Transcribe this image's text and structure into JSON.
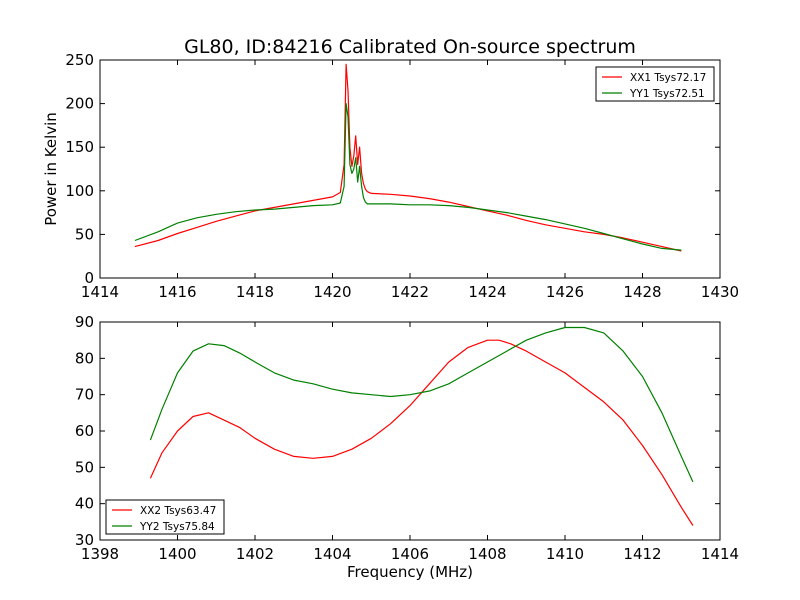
{
  "figure": {
    "title": "GL80, ID:84216 Calibrated On-source spectrum",
    "xlabel": "Frequency (MHz)"
  },
  "chart_data": [
    {
      "type": "line",
      "ylabel": "Power in Kelvin",
      "xlim": [
        1414,
        1430
      ],
      "ylim": [
        0,
        250
      ],
      "xticks": [
        1414,
        1416,
        1418,
        1420,
        1422,
        1424,
        1426,
        1428,
        1430
      ],
      "yticks": [
        0,
        50,
        100,
        150,
        200,
        250
      ],
      "grid": false,
      "legend": "top-right",
      "series": [
        {
          "name": "XX1 Tsys72.17",
          "color": "#ff0000",
          "x": [
            1414.9,
            1415.5,
            1416,
            1416.5,
            1417,
            1417.5,
            1418,
            1418.5,
            1419,
            1419.5,
            1420,
            1420.2,
            1420.3,
            1420.35,
            1420.4,
            1420.45,
            1420.5,
            1420.55,
            1420.6,
            1420.65,
            1420.7,
            1420.75,
            1420.8,
            1420.85,
            1420.9,
            1421,
            1421.5,
            1422,
            1422.5,
            1423,
            1423.5,
            1424,
            1424.5,
            1425,
            1425.5,
            1426,
            1426.5,
            1427,
            1427.5,
            1428,
            1428.5,
            1429
          ],
          "y": [
            36,
            43,
            51,
            58,
            65,
            71,
            77,
            81,
            85,
            89,
            93,
            98,
            130,
            245,
            215,
            150,
            128,
            140,
            163,
            130,
            150,
            120,
            108,
            102,
            99,
            97,
            96,
            94,
            91,
            87,
            82,
            77,
            72,
            66,
            61,
            57,
            53,
            50,
            46,
            41,
            36,
            31
          ]
        },
        {
          "name": "YY1 Tsys72.51",
          "color": "#008000",
          "x": [
            1414.9,
            1415.5,
            1416,
            1416.5,
            1417,
            1417.5,
            1418,
            1418.5,
            1419,
            1419.5,
            1420,
            1420.2,
            1420.3,
            1420.35,
            1420.4,
            1420.45,
            1420.5,
            1420.55,
            1420.6,
            1420.65,
            1420.7,
            1420.75,
            1420.8,
            1420.85,
            1420.9,
            1421,
            1421.5,
            1422,
            1422.5,
            1423,
            1423.5,
            1424,
            1424.5,
            1425,
            1425.5,
            1426,
            1426.5,
            1427,
            1427.5,
            1428,
            1428.5,
            1429
          ],
          "y": [
            43,
            53,
            63,
            69,
            73,
            76,
            78,
            79,
            81,
            83,
            84,
            86,
            105,
            200,
            185,
            130,
            120,
            125,
            138,
            110,
            128,
            105,
            92,
            87,
            85,
            85,
            85,
            84,
            84,
            83,
            81,
            78,
            75,
            71,
            67,
            62,
            57,
            51,
            45,
            39,
            34,
            32
          ]
        }
      ]
    },
    {
      "type": "line",
      "ylabel": "",
      "xlim": [
        1398,
        1414
      ],
      "ylim": [
        30,
        90
      ],
      "xticks": [
        1398,
        1400,
        1402,
        1404,
        1406,
        1408,
        1410,
        1412,
        1414
      ],
      "yticks": [
        30,
        40,
        50,
        60,
        70,
        80,
        90
      ],
      "grid": false,
      "legend": "bottom-left",
      "series": [
        {
          "name": "XX2 Tsys63.47",
          "color": "#ff0000",
          "x": [
            1399.3,
            1399.6,
            1400,
            1400.4,
            1400.8,
            1401.2,
            1401.6,
            1402,
            1402.5,
            1403,
            1403.5,
            1404,
            1404.5,
            1405,
            1405.5,
            1406,
            1406.5,
            1407,
            1407.5,
            1408,
            1408.3,
            1408.6,
            1409,
            1409.5,
            1410,
            1410.5,
            1411,
            1411.5,
            1412,
            1412.5,
            1413,
            1413.3
          ],
          "y": [
            47,
            54,
            60,
            64,
            65,
            63,
            61,
            58,
            55,
            53,
            52.5,
            53,
            55,
            58,
            62,
            67,
            73,
            79,
            83,
            85,
            85,
            84,
            82,
            79,
            76,
            72,
            68,
            63,
            56,
            48,
            39,
            34
          ]
        },
        {
          "name": "YY2 Tsys75.84",
          "color": "#008000",
          "x": [
            1399.3,
            1399.6,
            1400,
            1400.4,
            1400.8,
            1401.2,
            1401.6,
            1402,
            1402.5,
            1403,
            1403.5,
            1404,
            1404.5,
            1405,
            1405.5,
            1406,
            1406.5,
            1407,
            1407.5,
            1408,
            1408.5,
            1409,
            1409.5,
            1410,
            1410.5,
            1411,
            1411.5,
            1412,
            1412.5,
            1413,
            1413.3
          ],
          "y": [
            57.5,
            66,
            76,
            82,
            84,
            83.5,
            81.5,
            79,
            76,
            74,
            73,
            71.5,
            70.5,
            70,
            69.5,
            70,
            71,
            73,
            76,
            79,
            82,
            85,
            87,
            88.5,
            88.5,
            87,
            82,
            75,
            65,
            53,
            46
          ]
        }
      ]
    }
  ]
}
